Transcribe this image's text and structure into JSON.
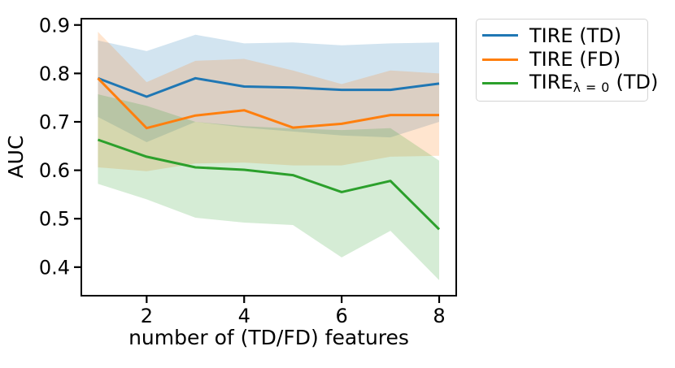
{
  "figure": {
    "background_color": "#ffffff",
    "text_color": "#000000",
    "spine_color": "#000000"
  },
  "chart_data": {
    "type": "line",
    "title": "",
    "xlabel": "number of (TD/FD) features",
    "ylabel": "AUC",
    "x": [
      1,
      2,
      3,
      4,
      5,
      6,
      7,
      8
    ],
    "xticks": [
      2,
      4,
      6,
      8
    ],
    "yticks": [
      0.4,
      0.5,
      0.6,
      0.7,
      0.8,
      0.9
    ],
    "xlim": [
      0.66,
      8.35
    ],
    "ylim": [
      0.341,
      0.913
    ],
    "grid": false,
    "legend_position": "outside-top-right",
    "band_style": "shaded confidence band, fill-opacity 0.2",
    "series": [
      {
        "name": "TIRE (TD)",
        "label_prefix": "TIRE",
        "label_sub": "",
        "label_suffix": " (TD)",
        "color": "#1f77b4",
        "band_alpha": 0.2,
        "values": [
          0.79,
          0.752,
          0.79,
          0.773,
          0.771,
          0.766,
          0.766,
          0.779
        ],
        "band_upper": [
          0.868,
          0.846,
          0.88,
          0.862,
          0.864,
          0.858,
          0.862,
          0.864
        ],
        "band_lower": [
          0.71,
          0.658,
          0.7,
          0.688,
          0.68,
          0.672,
          0.668,
          0.7
        ]
      },
      {
        "name": "TIRE (FD)",
        "label_prefix": "TIRE",
        "label_sub": "",
        "label_suffix": " (FD)",
        "color": "#ff7f0e",
        "band_alpha": 0.2,
        "values": [
          0.79,
          0.687,
          0.713,
          0.724,
          0.688,
          0.696,
          0.714,
          0.714
        ],
        "band_upper": [
          0.886,
          0.782,
          0.826,
          0.83,
          0.806,
          0.778,
          0.806,
          0.8
        ],
        "band_lower": [
          0.606,
          0.598,
          0.614,
          0.616,
          0.61,
          0.61,
          0.628,
          0.63
        ]
      },
      {
        "name": "TIRE_lambda=0 (TD)",
        "label_prefix": "TIRE",
        "label_sub": "λ = 0",
        "label_suffix": " (TD)",
        "color": "#2ca02c",
        "band_alpha": 0.2,
        "values": [
          0.663,
          0.628,
          0.606,
          0.601,
          0.59,
          0.555,
          0.578,
          0.478
        ],
        "band_upper": [
          0.757,
          0.733,
          0.7,
          0.691,
          0.686,
          0.683,
          0.687,
          0.62
        ],
        "band_lower": [
          0.572,
          0.54,
          0.502,
          0.492,
          0.487,
          0.42,
          0.475,
          0.373
        ]
      }
    ]
  }
}
